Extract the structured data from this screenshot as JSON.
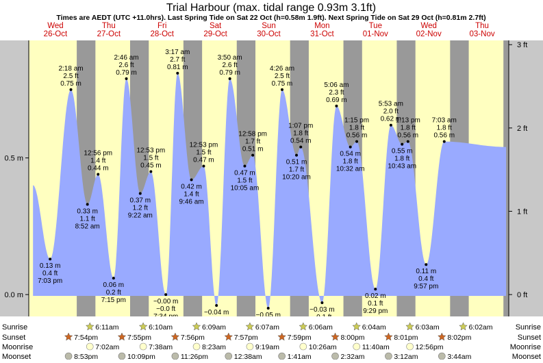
{
  "title": "Trial Harbour (max. tidal range 0.93m 3.1ft)",
  "subtitle": "Times are AEDT (UTC +11.0hrs). Last Spring Tide on Sat 22 Oct (h=0.58m 1.9ft). Next Spring Tide on Sat 29 Oct (h=0.81m 2.7ft)",
  "days": [
    {
      "dow": "Wed",
      "date": "26-Oct"
    },
    {
      "dow": "Thu",
      "date": "27-Oct"
    },
    {
      "dow": "Fri",
      "date": "28-Oct"
    },
    {
      "dow": "Sat",
      "date": "29-Oct"
    },
    {
      "dow": "Sun",
      "date": "30-Oct"
    },
    {
      "dow": "Mon",
      "date": "31-Oct"
    },
    {
      "dow": "Tue",
      "date": "01-Nov"
    },
    {
      "dow": "Wed",
      "date": "02-Nov"
    },
    {
      "dow": "Thu",
      "date": "03-Nov"
    }
  ],
  "chart_data": {
    "type": "area",
    "ylim_m": [
      -0.08,
      0.93
    ],
    "xlim_days": [
      0,
      9
    ],
    "left_axis": {
      "ticks": [
        {
          "v": 0.0,
          "label": "0.0 m"
        },
        {
          "v": 0.5,
          "label": "0.5 m"
        }
      ]
    },
    "right_axis": {
      "ticks": [
        {
          "v": 0,
          "label": "0 ft"
        },
        {
          "v": 1,
          "label": "1 ft"
        },
        {
          "v": 2,
          "label": "2 ft"
        },
        {
          "v": 3,
          "label": "3 ft"
        }
      ]
    },
    "series_start": {
      "x": 0.08,
      "h": 0.4
    },
    "series_end": {
      "x": 8.95,
      "h": 0.54
    },
    "tides": [
      {
        "x": 0.4,
        "h": 0.13,
        "time": "7:03 pm",
        "m": "0.13 m",
        "ft": "0.4 ft"
      },
      {
        "x": 0.79,
        "h": 0.75,
        "time": "2:18 am",
        "m": "0.75 m",
        "ft": "2.5 ft"
      },
      {
        "x": 1.1,
        "h": 0.33,
        "time": "8:52 am",
        "m": "0.33 m",
        "ft": "1.1 ft"
      },
      {
        "x": 1.3,
        "h": 0.44,
        "time": "12:56 pm",
        "m": "0.44 m",
        "ft": "1.4 ft"
      },
      {
        "x": 1.59,
        "h": 0.06,
        "time": "7:15 pm",
        "m": "0.06 m",
        "ft": "0.2 ft"
      },
      {
        "x": 1.83,
        "h": 0.79,
        "time": "2:46 am",
        "m": "0.79 m",
        "ft": "2.6 ft"
      },
      {
        "x": 2.09,
        "h": 0.37,
        "time": "9:22 am",
        "m": "0.37 m",
        "ft": "1.2 ft"
      },
      {
        "x": 2.29,
        "h": 0.45,
        "time": "12:53 pm",
        "m": "0.45 m",
        "ft": "1.5 ft"
      },
      {
        "x": 2.57,
        "h": -0.0,
        "time": "7:34 pm",
        "m": "−0.00 m",
        "ft": "−0.0 ft"
      },
      {
        "x": 2.79,
        "h": 0.81,
        "time": "3:17 am",
        "m": "0.81 m",
        "ft": "2.7 ft"
      },
      {
        "x": 3.05,
        "h": 0.42,
        "time": "9:46 am",
        "m": "0.42 m",
        "ft": "1.4 ft"
      },
      {
        "x": 3.28,
        "h": 0.47,
        "time": "12:53 pm",
        "m": "0.47 m",
        "ft": "1.5 ft"
      },
      {
        "x": 3.52,
        "h": -0.04,
        "time": "7:59 pm",
        "m": "−0.04 m",
        "ft": "−0.1 ft"
      },
      {
        "x": 3.77,
        "h": 0.79,
        "time": "3:50 am",
        "m": "0.79 m",
        "ft": "2.6 ft"
      },
      {
        "x": 4.05,
        "h": 0.47,
        "time": "10:05 am",
        "m": "0.47 m",
        "ft": "1.5 ft"
      },
      {
        "x": 4.2,
        "h": 0.51,
        "time": "12:58 pm",
        "m": "0.51 m",
        "ft": "1.7 ft"
      },
      {
        "x": 4.49,
        "h": -0.05,
        "time": "8:28 pm",
        "m": "−0.05 m",
        "ft": "−0.2 ft"
      },
      {
        "x": 4.75,
        "h": 0.75,
        "time": "4:26 am",
        "m": "0.75 m",
        "ft": "2.5 ft"
      },
      {
        "x": 5.02,
        "h": 0.51,
        "time": "10:20 am",
        "m": "0.51 m",
        "ft": "1.7 ft"
      },
      {
        "x": 5.1,
        "h": 0.54,
        "time": "1:07 pm",
        "m": "0.54 m",
        "ft": "1.8 ft"
      },
      {
        "x": 5.5,
        "h": -0.03,
        "time": "8:58 pm",
        "m": "−0.03 m",
        "ft": "−0.1 ft"
      },
      {
        "x": 5.77,
        "h": 0.69,
        "time": "5:06 am",
        "m": "0.69 m",
        "ft": "2.3 ft"
      },
      {
        "x": 6.03,
        "h": 0.54,
        "time": "10:32 am",
        "m": "0.54 m",
        "ft": "1.8 ft"
      },
      {
        "x": 6.15,
        "h": 0.56,
        "time": "1:15 pm",
        "m": "0.56 m",
        "ft": "1.8 ft"
      },
      {
        "x": 6.5,
        "h": 0.02,
        "time": "9:29 pm",
        "m": "0.02 m",
        "ft": "0.1 ft"
      },
      {
        "x": 6.79,
        "h": 0.62,
        "time": "5:53 am",
        "m": "0.62 m",
        "ft": "2.0 ft"
      },
      {
        "x": 7.0,
        "h": 0.55,
        "time": "10:43 am",
        "m": "0.55 m",
        "ft": "1.8 ft"
      },
      {
        "x": 7.11,
        "h": 0.56,
        "time": "1:13 pm",
        "m": "0.56 m",
        "ft": "1.8 ft"
      },
      {
        "x": 7.45,
        "h": 0.11,
        "time": "9:57 pm",
        "m": "0.11 m",
        "ft": "0.4 ft"
      },
      {
        "x": 7.79,
        "h": 0.56,
        "time": "7:03 am",
        "m": "0.56 m",
        "ft": "1.8 ft"
      }
    ],
    "night_bands": [
      {
        "from": 0.9,
        "to": 1.25
      },
      {
        "from": 1.9,
        "to": 2.25
      },
      {
        "from": 2.9,
        "to": 3.25
      },
      {
        "from": 3.9,
        "to": 4.25
      },
      {
        "from": 4.9,
        "to": 5.25
      },
      {
        "from": 5.9,
        "to": 6.25
      },
      {
        "from": 6.9,
        "to": 7.25
      },
      {
        "from": 7.9,
        "to": 8.25
      },
      {
        "from": 8.9,
        "to": 9.0
      }
    ],
    "astro": {
      "labels": {
        "sunrise": "Sunrise",
        "sunset": "Sunset",
        "moonrise": "Moonrise",
        "moonset": "Moonset"
      },
      "sunrise": [
        {
          "x": 1.3,
          "time": "6:11am"
        },
        {
          "x": 2.3,
          "time": "6:10am"
        },
        {
          "x": 3.3,
          "time": "6:09am"
        },
        {
          "x": 4.3,
          "time": "6:07am"
        },
        {
          "x": 5.3,
          "time": "6:06am"
        },
        {
          "x": 6.3,
          "time": "6:04am"
        },
        {
          "x": 7.3,
          "time": "6:03am"
        },
        {
          "x": 8.3,
          "time": "6:02am"
        }
      ],
      "sunset": [
        {
          "x": 0.9,
          "time": "7:54pm"
        },
        {
          "x": 1.9,
          "time": "7:55pm"
        },
        {
          "x": 2.9,
          "time": "7:56pm"
        },
        {
          "x": 3.9,
          "time": "7:57pm"
        },
        {
          "x": 4.9,
          "time": "7:59pm"
        },
        {
          "x": 5.9,
          "time": "8:00pm"
        },
        {
          "x": 6.9,
          "time": "8:01pm"
        },
        {
          "x": 7.9,
          "time": "8:02pm"
        }
      ],
      "moonrise": [
        {
          "x": 1.3,
          "time": "7:02am"
        },
        {
          "x": 2.3,
          "time": "7:38am"
        },
        {
          "x": 3.3,
          "time": "8:23am"
        },
        {
          "x": 4.3,
          "time": "9:19am"
        },
        {
          "x": 5.3,
          "time": "10:26am"
        },
        {
          "x": 6.3,
          "time": "11:40am"
        },
        {
          "x": 7.3,
          "time": "12:56pm"
        }
      ],
      "moonset": [
        {
          "x": 0.9,
          "time": "8:53pm"
        },
        {
          "x": 1.9,
          "time": "10:09pm"
        },
        {
          "x": 2.9,
          "time": "11:26pm"
        },
        {
          "x": 3.9,
          "time": "12:38am"
        },
        {
          "x": 4.9,
          "time": "1:41am"
        },
        {
          "x": 5.9,
          "time": "2:32am"
        },
        {
          "x": 6.9,
          "time": "3:12am"
        },
        {
          "x": 7.9,
          "time": "3:44am"
        }
      ]
    },
    "colors": {
      "day": "#ffffc0",
      "night": "#999999",
      "tide": "#99aaff",
      "outer": "#c8c8c8",
      "date_red": "#cc0000"
    }
  }
}
